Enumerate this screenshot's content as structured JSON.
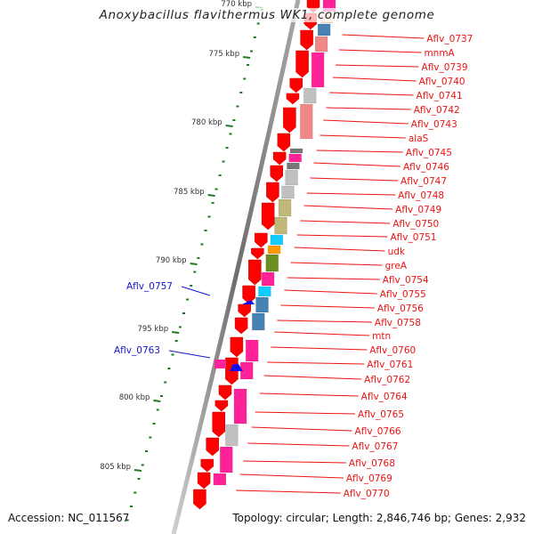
{
  "title": "Anoxybacillus flavithermus WK1, complete genome",
  "footer": {
    "accession": "Accession: NC_011567",
    "summary": "Topology: circular; Length: 2,846,746 bp; Genes: 2,932"
  },
  "colors": {
    "backbone": "#8a8a8a",
    "forward_gene": "#ff0000",
    "reverse_gene": "#1010ee",
    "forward_label": "#ee1111",
    "reverse_label": "#1515cc",
    "tick": "#1f7a1f",
    "cog_pink": "#ff2299",
    "cog_light_red": "#f08888",
    "cog_gray": "#c0c0c0",
    "cog_dark_gray": "#777777",
    "cog_steelblue": "#4682b4",
    "cog_cyan": "#11ccff",
    "cog_khaki": "#c0b878",
    "cog_orange": "#ff9900",
    "cog_olive": "#6b8e23",
    "cog_peach": "#f5d6b8"
  },
  "scale": {
    "unit": "kbp",
    "major_ticks": [
      {
        "label": "770 kbp",
        "faded": true
      },
      {
        "label": "775 kbp"
      },
      {
        "label": "780 kbp"
      },
      {
        "label": "785 kbp"
      },
      {
        "label": "790 kbp"
      },
      {
        "label": "795 kbp"
      },
      {
        "label": "800 kbp"
      },
      {
        "label": "805 kbp"
      }
    ]
  },
  "forward_gene_labels": [
    "Aflv_0737",
    "mnmA",
    "Aflv_0739",
    "Aflv_0740",
    "Aflv_0741",
    "Aflv_0742",
    "Aflv_0743",
    "alaS",
    "Aflv_0745",
    "Aflv_0746",
    "Aflv_0747",
    "Aflv_0748",
    "Aflv_0749",
    "Aflv_0750",
    "Aflv_0751",
    "udk",
    "greA",
    "Aflv_0754",
    "Aflv_0755",
    "Aflv_0756",
    "Aflv_0758",
    "mtn",
    "Aflv_0760",
    "Aflv_0761",
    "Aflv_0762",
    "Aflv_0764",
    "Aflv_0765",
    "Aflv_0766",
    "Aflv_0767",
    "Aflv_0768",
    "Aflv_0769",
    "Aflv_0770"
  ],
  "reverse_gene_labels": [
    "Aflv_0757",
    "Aflv_0763"
  ],
  "cog_segments": [
    {
      "cog": "cog_pink"
    },
    {
      "cog": "cog_peach"
    },
    {
      "cog": "cog_steelblue"
    },
    {
      "cog": "cog_light_red"
    },
    {
      "cog": "cog_pink"
    },
    {
      "cog": "cog_gray"
    },
    {
      "cog": "cog_light_red"
    },
    {
      "cog": "cog_dark_gray"
    },
    {
      "cog": "cog_pink"
    },
    {
      "cog": "cog_dark_gray"
    },
    {
      "cog": "cog_gray"
    },
    {
      "cog": "cog_gray"
    },
    {
      "cog": "cog_khaki"
    },
    {
      "cog": "cog_khaki"
    },
    {
      "cog": "cog_cyan"
    },
    {
      "cog": "cog_orange"
    },
    {
      "cog": "cog_olive"
    },
    {
      "cog": "cog_pink"
    },
    {
      "cog": "cog_cyan"
    },
    {
      "cog": "cog_steelblue"
    },
    {
      "cog": "cog_steelblue"
    },
    {
      "cog": "cog_pink"
    },
    {
      "cog": "cog_pink"
    },
    {
      "cog": "cog_pink"
    },
    {
      "cog": "cog_gray"
    },
    {
      "cog": "cog_pink"
    },
    {
      "cog": "cog_pink"
    }
  ]
}
